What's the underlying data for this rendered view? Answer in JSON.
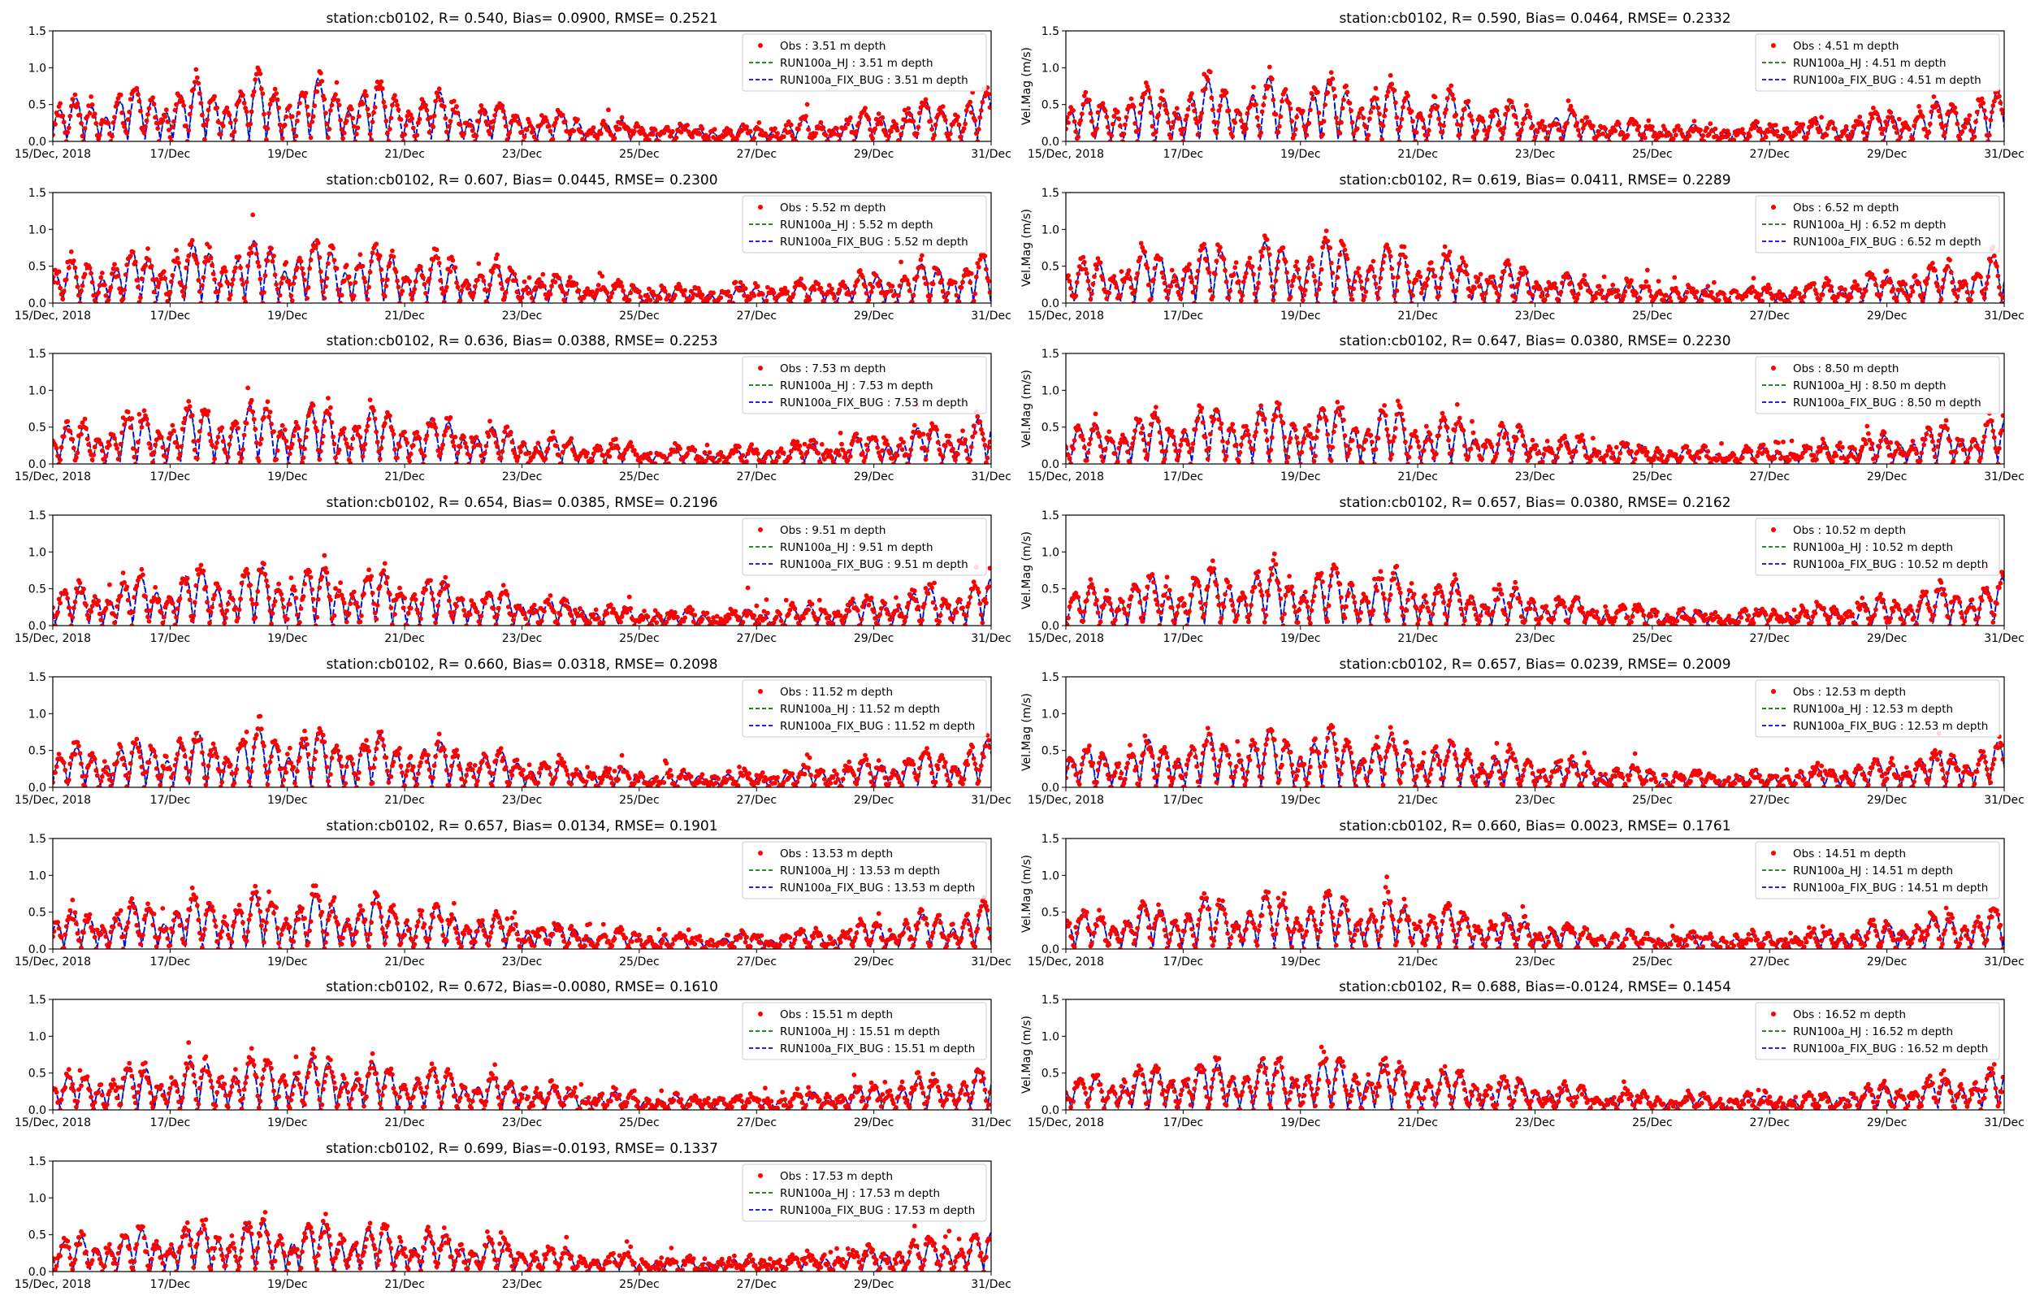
{
  "figure": {
    "xtick_labels": [
      "15/Dec, 2018",
      "17/Dec",
      "19/Dec",
      "21/Dec",
      "23/Dec",
      "25/Dec",
      "27/Dec",
      "29/Dec",
      "31/Dec"
    ],
    "ytick_labels": [
      "0.0",
      "0.5",
      "1.0",
      "1.5"
    ]
  },
  "chart_data": [
    {
      "type": "line",
      "title": "station:cb0102, R= 0.540, Bias= 0.0900, RMSE= 0.2521",
      "ylabel": "",
      "ylim": [
        0,
        1.5
      ],
      "xlim": [
        "2018-12-15",
        "2018-12-31"
      ],
      "depth": 3.51,
      "amp": 1.0,
      "series": [
        {
          "name": "Obs : 3.51 m depth",
          "color": "#ff0000",
          "style": "dots"
        },
        {
          "name": "RUN100a_HJ : 3.51 m depth",
          "color": "#008000",
          "style": "dashed"
        },
        {
          "name": "RUN100a_FIX_BUG : 3.51 m depth",
          "color": "#0000ff",
          "style": "dashed"
        }
      ]
    },
    {
      "type": "line",
      "title": "station:cb0102, R= 0.590, Bias= 0.0464, RMSE= 0.2332",
      "ylabel": "Vel.Mag (m/s)",
      "ylim": [
        0,
        1.5
      ],
      "xlim": [
        "2018-12-15",
        "2018-12-31"
      ],
      "depth": 4.51,
      "amp": 1.0,
      "series": [
        {
          "name": "Obs : 4.51 m depth",
          "color": "#ff0000",
          "style": "dots"
        },
        {
          "name": "RUN100a_HJ : 4.51 m depth",
          "color": "#008000",
          "style": "dashed"
        },
        {
          "name": "RUN100a_FIX_BUG : 4.51 m depth",
          "color": "#0000ff",
          "style": "dashed"
        }
      ]
    },
    {
      "type": "line",
      "title": "station:cb0102, R= 0.607, Bias= 0.0445, RMSE= 0.2300",
      "ylabel": "",
      "ylim": [
        0,
        1.5
      ],
      "xlim": [
        "2018-12-15",
        "2018-12-31"
      ],
      "depth": 5.52,
      "amp": 0.98,
      "series": [
        {
          "name": "Obs : 5.52 m depth",
          "color": "#ff0000",
          "style": "dots"
        },
        {
          "name": "RUN100a_HJ : 5.52 m depth",
          "color": "#008000",
          "style": "dashed"
        },
        {
          "name": "RUN100a_FIX_BUG : 5.52 m depth",
          "color": "#0000ff",
          "style": "dashed"
        }
      ]
    },
    {
      "type": "line",
      "title": "station:cb0102, R= 0.619, Bias= 0.0411, RMSE= 0.2289",
      "ylabel": "Vel.Mag (m/s)",
      "ylim": [
        0,
        1.5
      ],
      "xlim": [
        "2018-12-15",
        "2018-12-31"
      ],
      "depth": 6.52,
      "amp": 0.98,
      "series": [
        {
          "name": "Obs : 6.52 m depth",
          "color": "#ff0000",
          "style": "dots"
        },
        {
          "name": "RUN100a_HJ : 6.52 m depth",
          "color": "#008000",
          "style": "dashed"
        },
        {
          "name": "RUN100a_FIX_BUG : 6.52 m depth",
          "color": "#0000ff",
          "style": "dashed"
        }
      ]
    },
    {
      "type": "line",
      "title": "station:cb0102, R= 0.636, Bias= 0.0388, RMSE= 0.2253",
      "ylabel": "",
      "ylim": [
        0,
        1.5
      ],
      "xlim": [
        "2018-12-15",
        "2018-12-31"
      ],
      "depth": 7.53,
      "amp": 0.96,
      "series": [
        {
          "name": "Obs : 7.53 m depth",
          "color": "#ff0000",
          "style": "dots"
        },
        {
          "name": "RUN100a_HJ : 7.53 m depth",
          "color": "#008000",
          "style": "dashed"
        },
        {
          "name": "RUN100a_FIX_BUG : 7.53 m depth",
          "color": "#0000ff",
          "style": "dashed"
        }
      ]
    },
    {
      "type": "line",
      "title": "station:cb0102, R= 0.647, Bias= 0.0380, RMSE= 0.2230",
      "ylabel": "Vel.Mag (m/s)",
      "ylim": [
        0,
        1.5
      ],
      "xlim": [
        "2018-12-15",
        "2018-12-31"
      ],
      "depth": 8.5,
      "depth_label": "8.50",
      "amp": 0.96,
      "series": [
        {
          "name": "Obs : 8.50 m depth",
          "color": "#ff0000",
          "style": "dots"
        },
        {
          "name": "RUN100a_HJ : 8.50 m depth",
          "color": "#008000",
          "style": "dashed"
        },
        {
          "name": "RUN100a_FIX_BUG : 8.50 m depth",
          "color": "#0000ff",
          "style": "dashed"
        }
      ]
    },
    {
      "type": "line",
      "title": "station:cb0102, R= 0.654, Bias= 0.0385, RMSE= 0.2196",
      "ylabel": "",
      "ylim": [
        0,
        1.5
      ],
      "xlim": [
        "2018-12-15",
        "2018-12-31"
      ],
      "depth": 9.51,
      "amp": 0.94,
      "series": [
        {
          "name": "Obs : 9.51 m depth",
          "color": "#ff0000",
          "style": "dots"
        },
        {
          "name": "RUN100a_HJ : 9.51 m depth",
          "color": "#008000",
          "style": "dashed"
        },
        {
          "name": "RUN100a_FIX_BUG : 9.51 m depth",
          "color": "#0000ff",
          "style": "dashed"
        }
      ]
    },
    {
      "type": "line",
      "title": "station:cb0102, R= 0.657, Bias= 0.0380, RMSE= 0.2162",
      "ylabel": "Vel.Mag (m/s)",
      "ylim": [
        0,
        1.5
      ],
      "xlim": [
        "2018-12-15",
        "2018-12-31"
      ],
      "depth": 10.52,
      "amp": 0.94,
      "series": [
        {
          "name": "Obs : 10.52 m depth",
          "color": "#ff0000",
          "style": "dots"
        },
        {
          "name": "RUN100a_HJ : 10.52 m depth",
          "color": "#008000",
          "style": "dashed"
        },
        {
          "name": "RUN100a_FIX_BUG : 10.52 m depth",
          "color": "#0000ff",
          "style": "dashed"
        }
      ]
    },
    {
      "type": "line",
      "title": "station:cb0102, R= 0.660, Bias= 0.0318, RMSE= 0.2098",
      "ylabel": "",
      "ylim": [
        0,
        1.5
      ],
      "xlim": [
        "2018-12-15",
        "2018-12-31"
      ],
      "depth": 11.52,
      "amp": 0.92,
      "series": [
        {
          "name": "Obs : 11.52 m depth",
          "color": "#ff0000",
          "style": "dots"
        },
        {
          "name": "RUN100a_HJ : 11.52 m depth",
          "color": "#008000",
          "style": "dashed"
        },
        {
          "name": "RUN100a_FIX_BUG : 11.52 m depth",
          "color": "#0000ff",
          "style": "dashed"
        }
      ]
    },
    {
      "type": "line",
      "title": "station:cb0102, R= 0.657, Bias= 0.0239, RMSE= 0.2009",
      "ylabel": "Vel.Mag (m/s)",
      "ylim": [
        0,
        1.5
      ],
      "xlim": [
        "2018-12-15",
        "2018-12-31"
      ],
      "depth": 12.53,
      "amp": 0.9,
      "series": [
        {
          "name": "Obs : 12.53 m depth",
          "color": "#ff0000",
          "style": "dots"
        },
        {
          "name": "RUN100a_HJ : 12.53 m depth",
          "color": "#008000",
          "style": "dashed"
        },
        {
          "name": "RUN100a_FIX_BUG : 12.53 m depth",
          "color": "#0000ff",
          "style": "dashed"
        }
      ]
    },
    {
      "type": "line",
      "title": "station:cb0102, R= 0.657, Bias= 0.0134, RMSE= 0.1901",
      "ylabel": "",
      "ylim": [
        0,
        1.5
      ],
      "xlim": [
        "2018-12-15",
        "2018-12-31"
      ],
      "depth": 13.53,
      "amp": 0.88,
      "series": [
        {
          "name": "Obs : 13.53 m depth",
          "color": "#ff0000",
          "style": "dots"
        },
        {
          "name": "RUN100a_HJ : 13.53 m depth",
          "color": "#008000",
          "style": "dashed"
        },
        {
          "name": "RUN100a_FIX_BUG : 13.53 m depth",
          "color": "#0000ff",
          "style": "dashed"
        }
      ]
    },
    {
      "type": "line",
      "title": "station:cb0102, R= 0.660, Bias= 0.0023, RMSE= 0.1761",
      "ylabel": "Vel.Mag (m/s)",
      "ylim": [
        0,
        1.5
      ],
      "xlim": [
        "2018-12-15",
        "2018-12-31"
      ],
      "depth": 14.51,
      "amp": 0.86,
      "series": [
        {
          "name": "Obs : 14.51 m depth",
          "color": "#ff0000",
          "style": "dots"
        },
        {
          "name": "RUN100a_HJ : 14.51 m depth",
          "color": "#008000",
          "style": "dashed"
        },
        {
          "name": "RUN100a_FIX_BUG : 14.51 m depth",
          "color": "#0000ff",
          "style": "dashed"
        }
      ]
    },
    {
      "type": "line",
      "title": "station:cb0102, R= 0.672, Bias=-0.0080, RMSE= 0.1610",
      "ylabel": "",
      "ylim": [
        0,
        1.5
      ],
      "xlim": [
        "2018-12-15",
        "2018-12-31"
      ],
      "depth": 15.51,
      "amp": 0.84,
      "series": [
        {
          "name": "Obs : 15.51 m depth",
          "color": "#ff0000",
          "style": "dots"
        },
        {
          "name": "RUN100a_HJ : 15.51 m depth",
          "color": "#008000",
          "style": "dashed"
        },
        {
          "name": "RUN100a_FIX_BUG : 15.51 m depth",
          "color": "#0000ff",
          "style": "dashed"
        }
      ]
    },
    {
      "type": "line",
      "title": "station:cb0102, R= 0.688, Bias=-0.0124, RMSE= 0.1454",
      "ylabel": "Vel.Mag (m/s)",
      "ylim": [
        0,
        1.5
      ],
      "xlim": [
        "2018-12-15",
        "2018-12-31"
      ],
      "depth": 16.52,
      "amp": 0.82,
      "series": [
        {
          "name": "Obs : 16.52 m depth",
          "color": "#ff0000",
          "style": "dots"
        },
        {
          "name": "RUN100a_HJ : 16.52 m depth",
          "color": "#008000",
          "style": "dashed"
        },
        {
          "name": "RUN100a_FIX_BUG : 16.52 m depth",
          "color": "#0000ff",
          "style": "dashed"
        }
      ]
    },
    {
      "type": "line",
      "title": "station:cb0102, R= 0.699, Bias=-0.0193, RMSE= 0.1337",
      "ylabel": "",
      "ylim": [
        0,
        1.5
      ],
      "xlim": [
        "2018-12-15",
        "2018-12-31"
      ],
      "depth": 17.53,
      "amp": 0.8,
      "series": [
        {
          "name": "Obs : 17.53 m depth",
          "color": "#ff0000",
          "style": "dots"
        },
        {
          "name": "RUN100a_HJ : 17.53 m depth",
          "color": "#008000",
          "style": "dashed"
        },
        {
          "name": "RUN100a_FIX_BUG : 17.53 m depth",
          "color": "#0000ff",
          "style": "dashed"
        }
      ]
    }
  ]
}
